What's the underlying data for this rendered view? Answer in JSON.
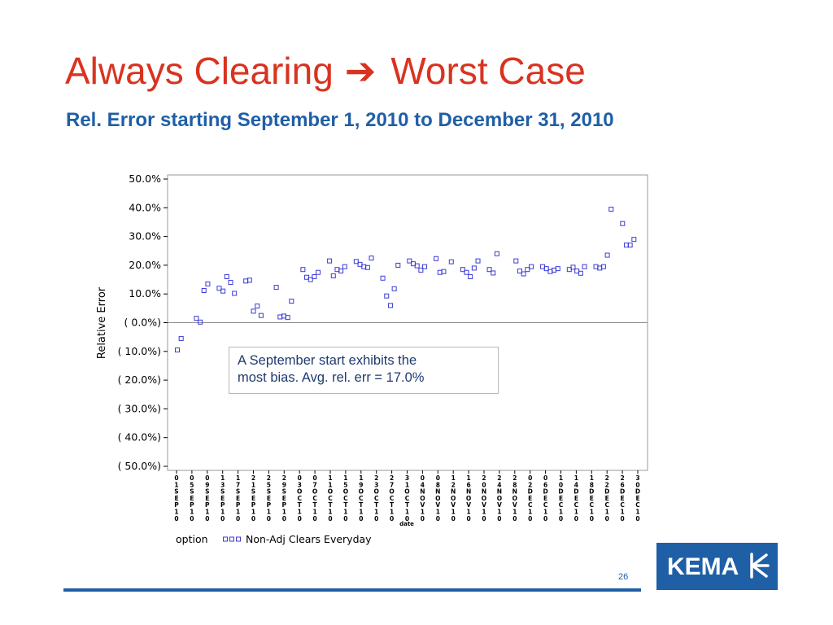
{
  "slide": {
    "title_left": "Always Clearing",
    "title_arrow": "➔",
    "title_right": "Worst Case",
    "subtitle": "Rel. Error starting September 1, 2010 to December 31, 2010",
    "annotation": {
      "line1": "A September start exhibits the",
      "line2": "most bias.  Avg. rel. err = 17.0%"
    },
    "page_number": "26",
    "logo_text": "KEMA"
  },
  "colors": {
    "title": "#d9331f",
    "subtitle": "#1f5fa6",
    "marker": "#3b3bd6",
    "footer_line": "#1f5fa6",
    "logo_bg": "#1f5fa6"
  },
  "chart_data": {
    "type": "scatter",
    "ylabel": "Relative Error",
    "xlabel": "date",
    "ylim": [
      -50,
      50
    ],
    "yticks": [
      {
        "value": 50,
        "label": "50.0%"
      },
      {
        "value": 40,
        "label": "40.0%"
      },
      {
        "value": 30,
        "label": "30.0%"
      },
      {
        "value": 20,
        "label": "20.0%"
      },
      {
        "value": 10,
        "label": "10.0%"
      },
      {
        "value": 0,
        "label": "(  0.0%)"
      },
      {
        "value": -10,
        "label": "( 10.0%)"
      },
      {
        "value": -20,
        "label": "( 20.0%)"
      },
      {
        "value": -30,
        "label": "( 30.0%)"
      },
      {
        "value": -40,
        "label": "( 40.0%)"
      },
      {
        "value": -50,
        "label": "( 50.0%)"
      }
    ],
    "x_range": [
      "2010-09-01",
      "2010-12-31"
    ],
    "x_tick_labels": [
      "01SEP10",
      "05SEP10",
      "09SEP10",
      "13SEP10",
      "17SEP10",
      "21SEP10",
      "25SEP10",
      "29SEP10",
      "03OCT10",
      "07OCT10",
      "11OCT10",
      "15OCT10",
      "19OCT10",
      "23OCT10",
      "27OCT10",
      "31OCT10",
      "04NOV10",
      "08NOV10",
      "12NOV10",
      "16NOV10",
      "20NOV10",
      "24NOV10",
      "28NOV10",
      "02DEC10",
      "06DEC10",
      "10DEC10",
      "14DEC10",
      "18DEC10",
      "22DEC10",
      "26DEC10",
      "30DEC10"
    ],
    "reference_line": 0,
    "legend": {
      "title": "option",
      "entries": [
        {
          "label": "Non-Adj  Clears Everyday"
        }
      ]
    },
    "series": [
      {
        "name": "Non-Adj  Clears Everyday",
        "points": [
          [
            "2010-09-01",
            -9.5
          ],
          [
            "2010-09-02",
            -5.5
          ],
          [
            "2010-09-06",
            1.5
          ],
          [
            "2010-09-07",
            0.2
          ],
          [
            "2010-09-08",
            11.2
          ],
          [
            "2010-09-09",
            13.5
          ],
          [
            "2010-09-12",
            12.0
          ],
          [
            "2010-09-13",
            11.0
          ],
          [
            "2010-09-14",
            16.0
          ],
          [
            "2010-09-15",
            14.0
          ],
          [
            "2010-09-16",
            10.2
          ],
          [
            "2010-09-19",
            14.5
          ],
          [
            "2010-09-20",
            14.8
          ],
          [
            "2010-09-21",
            4.0
          ],
          [
            "2010-09-22",
            5.8
          ],
          [
            "2010-09-23",
            2.5
          ],
          [
            "2010-09-27",
            12.3
          ],
          [
            "2010-09-28",
            2.0
          ],
          [
            "2010-09-29",
            2.3
          ],
          [
            "2010-09-30",
            1.8
          ],
          [
            "2010-10-01",
            7.5
          ],
          [
            "2010-10-04",
            18.5
          ],
          [
            "2010-10-05",
            15.8
          ],
          [
            "2010-10-06",
            15.0
          ],
          [
            "2010-10-07",
            16.0
          ],
          [
            "2010-10-08",
            17.5
          ],
          [
            "2010-10-11",
            21.5
          ],
          [
            "2010-10-12",
            16.3
          ],
          [
            "2010-10-13",
            18.5
          ],
          [
            "2010-10-14",
            18.0
          ],
          [
            "2010-10-15",
            19.5
          ],
          [
            "2010-10-18",
            21.3
          ],
          [
            "2010-10-19",
            20.3
          ],
          [
            "2010-10-20",
            19.5
          ],
          [
            "2010-10-21",
            19.2
          ],
          [
            "2010-10-22",
            22.5
          ],
          [
            "2010-10-25",
            15.5
          ],
          [
            "2010-10-26",
            9.3
          ],
          [
            "2010-10-27",
            6.0
          ],
          [
            "2010-10-28",
            11.8
          ],
          [
            "2010-10-29",
            20.0
          ],
          [
            "2010-11-01",
            21.5
          ],
          [
            "2010-11-02",
            20.5
          ],
          [
            "2010-11-03",
            19.8
          ],
          [
            "2010-11-04",
            18.3
          ],
          [
            "2010-11-05",
            19.5
          ],
          [
            "2010-11-08",
            22.3
          ],
          [
            "2010-11-09",
            17.5
          ],
          [
            "2010-11-10",
            17.8
          ],
          [
            "2010-11-12",
            21.2
          ],
          [
            "2010-11-15",
            18.5
          ],
          [
            "2010-11-16",
            17.5
          ],
          [
            "2010-11-17",
            16.0
          ],
          [
            "2010-11-18",
            19.0
          ],
          [
            "2010-11-19",
            21.5
          ],
          [
            "2010-11-22",
            18.5
          ],
          [
            "2010-11-23",
            17.3
          ],
          [
            "2010-11-24",
            24.0
          ],
          [
            "2010-11-29",
            21.5
          ],
          [
            "2010-11-30",
            18.0
          ],
          [
            "2010-12-01",
            17.0
          ],
          [
            "2010-12-02",
            18.5
          ],
          [
            "2010-12-03",
            19.5
          ],
          [
            "2010-12-06",
            19.5
          ],
          [
            "2010-12-07",
            18.8
          ],
          [
            "2010-12-08",
            17.8
          ],
          [
            "2010-12-09",
            18.3
          ],
          [
            "2010-12-10",
            18.8
          ],
          [
            "2010-12-13",
            18.5
          ],
          [
            "2010-12-14",
            19.3
          ],
          [
            "2010-12-15",
            18.0
          ],
          [
            "2010-12-16",
            17.2
          ],
          [
            "2010-12-17",
            19.5
          ],
          [
            "2010-12-20",
            19.5
          ],
          [
            "2010-12-21",
            19.0
          ],
          [
            "2010-12-22",
            19.5
          ],
          [
            "2010-12-23",
            23.5
          ],
          [
            "2010-12-24",
            39.5
          ],
          [
            "2010-12-27",
            34.5
          ],
          [
            "2010-12-28",
            27.0
          ],
          [
            "2010-12-29",
            27.0
          ],
          [
            "2010-12-30",
            29.0
          ]
        ]
      }
    ]
  }
}
